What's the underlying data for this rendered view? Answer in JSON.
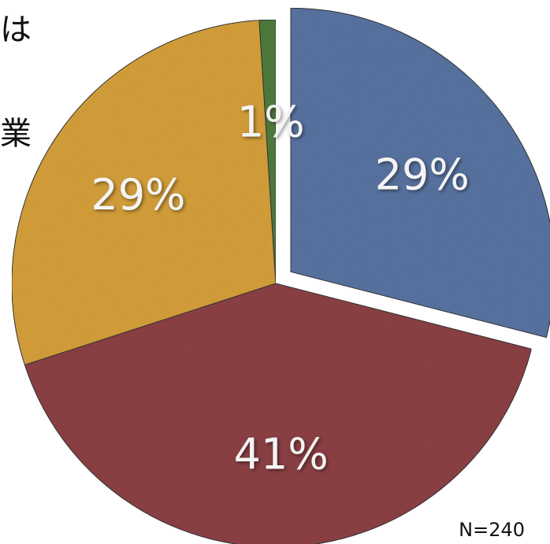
{
  "side_text": [
    "は",
    "業"
  ],
  "note": "N=240",
  "chart_data": {
    "type": "pie",
    "title": "",
    "slices": [
      {
        "label": "29%",
        "value": 29,
        "color": "#5872a0",
        "exploded": true
      },
      {
        "label": "41%",
        "value": 41,
        "color": "#8b4044",
        "exploded": false
      },
      {
        "label": "29%",
        "value": 29,
        "color": "#d39e3a",
        "exploded": false
      },
      {
        "label": "1%",
        "value": 1,
        "color": "#4e7a3c",
        "exploded": false
      }
    ]
  }
}
